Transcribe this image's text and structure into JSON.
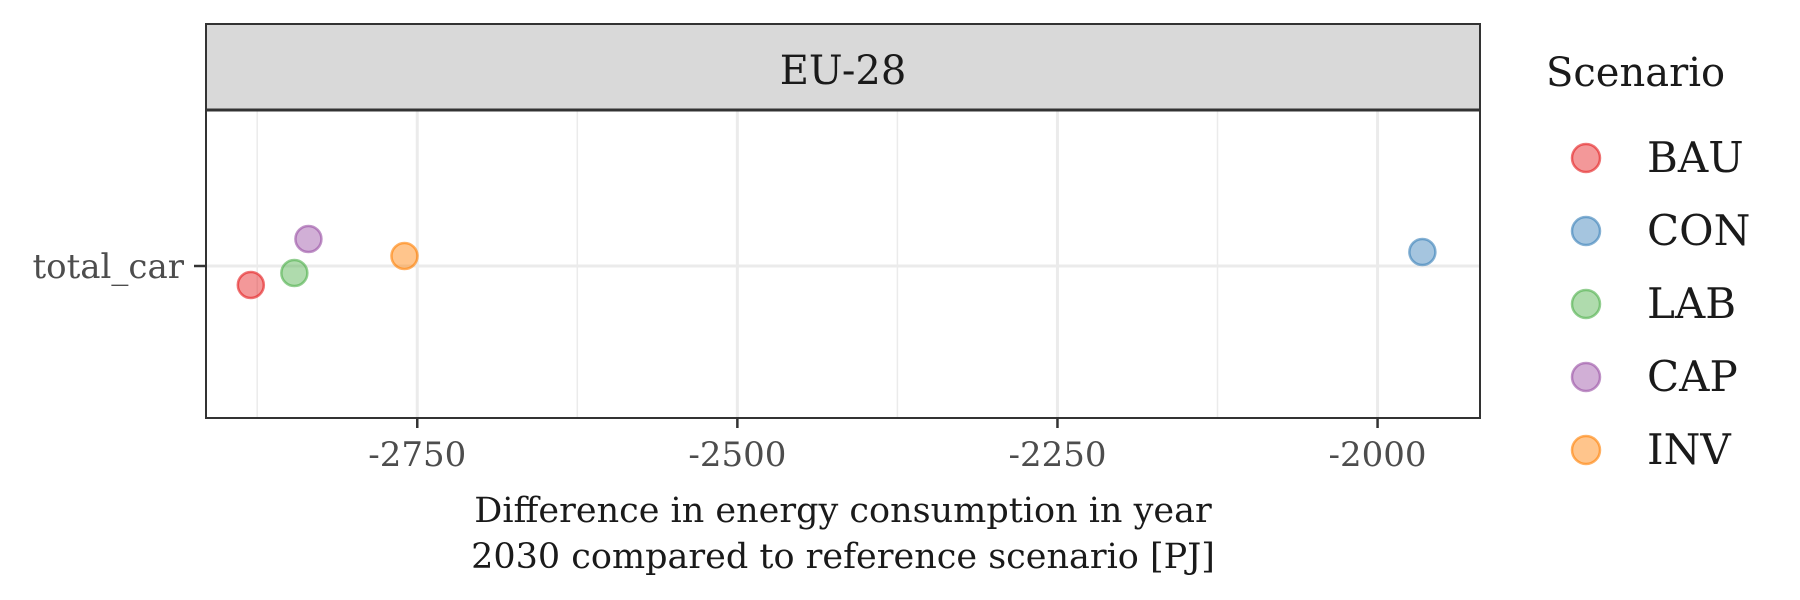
{
  "chart_data": {
    "type": "scatter",
    "facet_label": "EU-28",
    "xlabel_lines": [
      "Difference in energy consumption in year",
      "2030 compared to reference scenario [PJ]"
    ],
    "y_categories": [
      "total_car"
    ],
    "x_ticks": [
      -2750,
      -2500,
      -2250,
      -2000
    ],
    "x_tick_labels": [
      "-2750",
      "-2500",
      "-2250",
      "-2000"
    ],
    "xlim": [
      -2915,
      -1920
    ],
    "grid": true,
    "legend": {
      "title": "Scenario",
      "position": "right"
    },
    "series": [
      {
        "name": "BAU",
        "color": "#E41A1C",
        "x": -2880,
        "y": "total_car"
      },
      {
        "name": "CON",
        "color": "#377EB8",
        "x": -1965,
        "y": "total_car"
      },
      {
        "name": "LAB",
        "color": "#4DAF4A",
        "x": -2846,
        "y": "total_car"
      },
      {
        "name": "CAP",
        "color": "#984EA3",
        "x": -2835,
        "y": "total_car"
      },
      {
        "name": "INV",
        "color": "#FF7F00",
        "x": -2760,
        "y": "total_car"
      }
    ]
  }
}
